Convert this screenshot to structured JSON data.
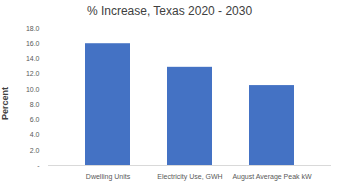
{
  "chart_data": {
    "type": "bar",
    "title": "% Increase, Texas 2020 - 2030",
    "y_label": "Percent",
    "categories": [
      "Dwelling Units",
      "Electricity Use, GWH",
      "August Average Peak kW"
    ],
    "values": [
      16.0,
      12.9,
      10.5
    ],
    "color": "#4472c4",
    "ylim": [
      0,
      18
    ],
    "yticks": [
      {
        "value": 0,
        "label": "-"
      },
      {
        "value": 2,
        "label": "2.0"
      },
      {
        "value": 4,
        "label": "4.0"
      },
      {
        "value": 6,
        "label": "6.0"
      },
      {
        "value": 8,
        "label": "8.0"
      },
      {
        "value": 10,
        "label": "10.0"
      },
      {
        "value": 12,
        "label": "12.0"
      },
      {
        "value": 14,
        "label": "14.0"
      },
      {
        "value": 16,
        "label": "16.0"
      },
      {
        "value": 18,
        "label": "18.0"
      }
    ],
    "grid": false
  }
}
